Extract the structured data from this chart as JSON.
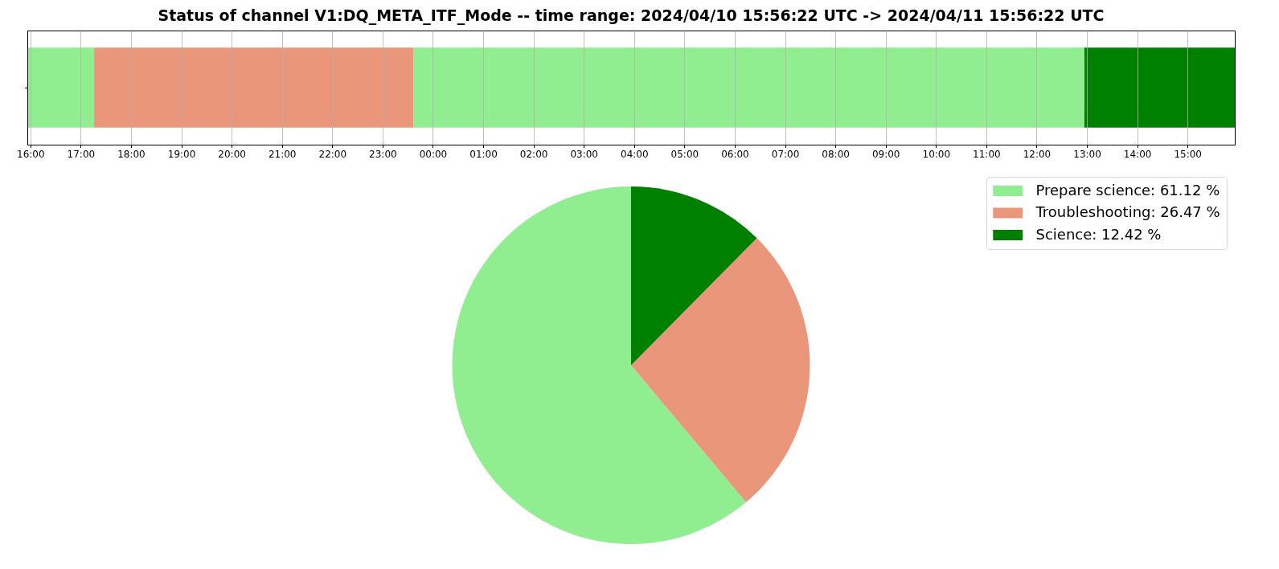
{
  "chart_data": [
    {
      "type": "bar",
      "title": "Status of channel V1:DQ_META_ITF_Mode -- time range: 2024/04/10 15:56:22 UTC -> 2024/04/11 15:56:22 UTC",
      "orientation": "horizontal",
      "categories": [
        null
      ],
      "bands": [
        {
          "axis": "x",
          "from": "2024-04-10T15:56:22",
          "to": "2024-04-10T17:16",
          "color": "#90ee90"
        },
        {
          "axis": "x",
          "from": "2024-04-10T17:16",
          "to": "2024-04-10T23:37",
          "color": "#e9967a"
        },
        {
          "axis": "x",
          "from": "2024-04-10T23:37",
          "to": "2024-04-11T12:57",
          "color": "#90ee90"
        },
        {
          "axis": "x",
          "from": "2024-04-11T12:57",
          "to": "2024-04-11T15:56:22",
          "color": "#008000"
        }
      ],
      "xlim": [
        "2024-04-10T15:56:22",
        "2024-04-11T15:56:22"
      ],
      "xticks": [
        {
          "value": "2024-04-10T16:00",
          "label": "16:00"
        },
        {
          "value": "2024-04-10T17:00",
          "label": "17:00"
        },
        {
          "value": "2024-04-10T18:00",
          "label": "18:00"
        },
        {
          "value": "2024-04-10T19:00",
          "label": "19:00"
        },
        {
          "value": "2024-04-10T20:00",
          "label": "20:00"
        },
        {
          "value": "2024-04-10T21:00",
          "label": "21:00"
        },
        {
          "value": "2024-04-10T22:00",
          "label": "22:00"
        },
        {
          "value": "2024-04-10T23:00",
          "label": "23:00"
        },
        {
          "value": "2024-04-11T00:00",
          "label": "00:00"
        },
        {
          "value": "2024-04-11T01:00",
          "label": "01:00"
        },
        {
          "value": "2024-04-11T02:00",
          "label": "02:00"
        },
        {
          "value": "2024-04-11T03:00",
          "label": "03:00"
        },
        {
          "value": "2024-04-11T04:00",
          "label": "04:00"
        },
        {
          "value": "2024-04-11T05:00",
          "label": "05:00"
        },
        {
          "value": "2024-04-11T06:00",
          "label": "06:00"
        },
        {
          "value": "2024-04-11T07:00",
          "label": "07:00"
        },
        {
          "value": "2024-04-11T08:00",
          "label": "08:00"
        },
        {
          "value": "2024-04-11T09:00",
          "label": "09:00"
        },
        {
          "value": "2024-04-11T10:00",
          "label": "10:00"
        },
        {
          "value": "2024-04-11T11:00",
          "label": "11:00"
        },
        {
          "value": "2024-04-11T12:00",
          "label": "12:00"
        },
        {
          "value": "2024-04-11T13:00",
          "label": "13:00"
        },
        {
          "value": "2024-04-11T14:00",
          "label": "14:00"
        },
        {
          "value": "2024-04-11T15:00",
          "label": "15:00"
        }
      ],
      "grid": "x",
      "tick_labels": "x"
    },
    {
      "type": "pie",
      "categories": [
        "Prepare science: 61.12 %",
        "Troubleshooting: 26.47 %",
        "Science: 12.42 %"
      ],
      "values": [
        61.12,
        26.47,
        12.42
      ],
      "colors": [
        "#90ee90",
        "#e9967a",
        "#008000"
      ],
      "legend": "top right"
    }
  ]
}
